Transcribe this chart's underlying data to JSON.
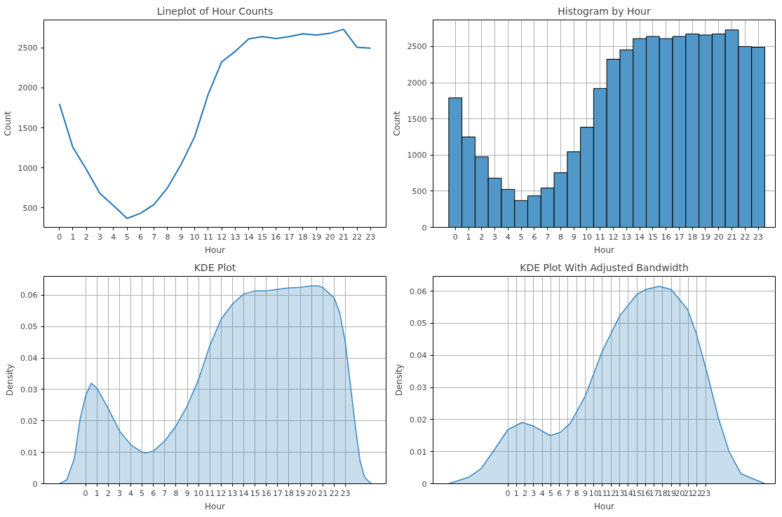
{
  "chart_data": [
    {
      "type": "line",
      "title": "Lineplot of Hour Counts",
      "xlabel": "Hour",
      "ylabel": "Count",
      "grid": false,
      "x": [
        0,
        1,
        2,
        3,
        4,
        5,
        6,
        7,
        8,
        9,
        10,
        11,
        12,
        13,
        14,
        15,
        16,
        17,
        18,
        19,
        20,
        21,
        22,
        23
      ],
      "series": [
        {
          "color": "#1f77b4",
          "values": [
            1800,
            1255,
            980,
            680,
            530,
            370,
            435,
            545,
            755,
            1045,
            1390,
            1920,
            2325,
            2455,
            2610,
            2640,
            2615,
            2640,
            2675,
            2660,
            2680,
            2730,
            2505,
            2495
          ]
        }
      ],
      "xlim": [
        -1.15,
        24.15
      ],
      "ylim": [
        259,
        2847
      ],
      "xticks": [
        0,
        1,
        2,
        3,
        4,
        5,
        6,
        7,
        8,
        9,
        10,
        11,
        12,
        13,
        14,
        15,
        16,
        17,
        18,
        19,
        20,
        21,
        22,
        23
      ],
      "yticks": [
        500,
        1000,
        1500,
        2000,
        2500
      ]
    },
    {
      "type": "histogram",
      "title": "Histogram by Hour",
      "xlabel": "Hour",
      "ylabel": "Count",
      "grid": true,
      "color": "#5197c7",
      "bins": [
        -0.5,
        0.5,
        1.5,
        2.5,
        3.5,
        4.5,
        5.5,
        6.5,
        7.5,
        8.5,
        9.5,
        10.5,
        11.5,
        12.5,
        13.5,
        14.5,
        15.5,
        16.5,
        17.5,
        18.5,
        19.5,
        20.5,
        21.5,
        22.5,
        23.5
      ],
      "values": [
        1790,
        1250,
        975,
        680,
        525,
        370,
        435,
        545,
        755,
        1045,
        1385,
        1920,
        2325,
        2455,
        2610,
        2640,
        2610,
        2640,
        2675,
        2660,
        2675,
        2730,
        2500,
        2490
      ],
      "xlim": [
        -1.69,
        24.3
      ],
      "ylim": [
        0,
        2868
      ],
      "xticks": [
        0,
        1,
        2,
        3,
        4,
        5,
        6,
        7,
        8,
        9,
        10,
        11,
        12,
        13,
        14,
        15,
        16,
        17,
        18,
        19,
        20,
        21,
        22,
        23
      ],
      "yticks": [
        0,
        500,
        1000,
        1500,
        2000,
        2500
      ]
    },
    {
      "type": "area",
      "title": "KDE Plot",
      "xlabel": "Hour",
      "ylabel": "Density",
      "grid": true,
      "series": [
        {
          "color": "#3b87c0",
          "x": [
            -2.32,
            -1.67,
            -1.0,
            -0.48,
            0,
            0.5,
            1,
            2,
            3,
            4,
            5,
            5.3,
            6,
            7,
            8,
            9,
            10,
            11,
            12,
            13,
            14,
            15,
            16,
            17,
            18,
            19,
            20,
            20.6,
            21,
            22,
            22.5,
            23,
            23.4,
            23.9,
            24.3,
            24.7,
            25.3
          ],
          "values": [
            0,
            0.0012,
            0.008,
            0.0208,
            0.028,
            0.032,
            0.0304,
            0.024,
            0.0168,
            0.0124,
            0.01,
            0.0098,
            0.0104,
            0.0136,
            0.0184,
            0.0248,
            0.0332,
            0.044,
            0.0524,
            0.0572,
            0.0604,
            0.0614,
            0.0614,
            0.0619,
            0.0623,
            0.0625,
            0.063,
            0.063,
            0.0624,
            0.0592,
            0.0544,
            0.0448,
            0.0328,
            0.0176,
            0.0072,
            0.002,
            0
          ]
        }
      ],
      "xlim": [
        -3.7,
        26.6
      ],
      "ylim": [
        0,
        0.066
      ],
      "xticks": [
        0,
        1,
        2,
        3,
        4,
        5,
        6,
        7,
        8,
        9,
        10,
        11,
        12,
        13,
        14,
        15,
        16,
        17,
        18,
        19,
        20,
        21,
        22,
        23
      ],
      "yticks": [
        0,
        {
          "value": 0.01,
          "label": "0.01"
        },
        {
          "value": 0.02,
          "label": "0.02"
        },
        {
          "value": 0.03,
          "label": "0.03"
        },
        {
          "value": 0.04,
          "label": "0.04"
        },
        {
          "value": 0.05,
          "label": "0.05"
        },
        {
          "value": 0.06,
          "label": "0.06"
        }
      ]
    },
    {
      "type": "area",
      "title": "KDE Plot With Adjusted Bandwidth",
      "xlabel": "Hour",
      "ylabel": "Density",
      "grid": true,
      "series": [
        {
          "color": "#3b87c0",
          "x": [
            -6.9,
            -4.55,
            -3.1,
            -1.67,
            0,
            1.64,
            2.94,
            4.95,
            6.1,
            7.25,
            9,
            11,
            13,
            15,
            16,
            17.6,
            19,
            20.9,
            21.9,
            23.1,
            24.5,
            25.7,
            27.1,
            29.9
          ],
          "values": [
            0,
            0.002,
            0.0047,
            0.0102,
            0.0168,
            0.0191,
            0.018,
            0.015,
            0.016,
            0.0188,
            0.0273,
            0.0414,
            0.0523,
            0.059,
            0.0605,
            0.0615,
            0.0605,
            0.0543,
            0.0469,
            0.0352,
            0.0203,
            0.0102,
            0.0031,
            0
          ]
        }
      ],
      "xlim": [
        -8.69,
        31.1
      ],
      "ylim": [
        0,
        0.0646
      ],
      "xticks": [
        0,
        1,
        2,
        3,
        4,
        5,
        6,
        7,
        8,
        9,
        10,
        11,
        12,
        13,
        14,
        15,
        16,
        17,
        18,
        19,
        20,
        21,
        22,
        23
      ],
      "yticks": [
        0,
        {
          "value": 0.01,
          "label": "0.01"
        },
        {
          "value": 0.02,
          "label": "0.02"
        },
        {
          "value": 0.03,
          "label": "0.03"
        },
        {
          "value": 0.04,
          "label": "0.04"
        },
        {
          "value": 0.05,
          "label": "0.05"
        },
        {
          "value": 0.06,
          "label": "0.06"
        }
      ]
    }
  ]
}
